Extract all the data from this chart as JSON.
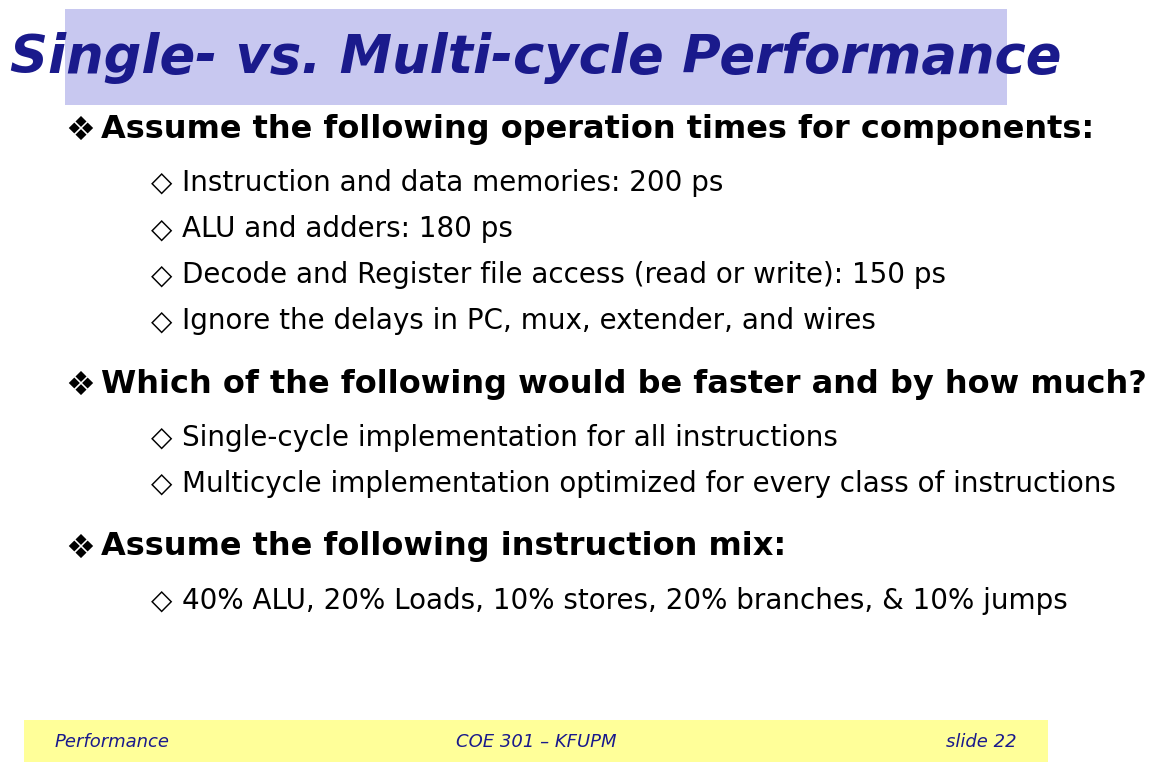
{
  "title": "Single- vs. Multi-cycle Performance",
  "title_bg_color": "#c8c8f0",
  "title_text_color": "#1a1a8c",
  "slide_bg_color": "#ffffff",
  "footer_bg_color": "#ffff99",
  "footer_left": "Performance",
  "footer_center": "COE 301 – KFUPM",
  "footer_right": "slide 22",
  "footer_text_color": "#1a1a8c",
  "body_text_color": "#000000",
  "main_bullets": [
    "Assume the following operation times for components:",
    "Which of the following would be faster and by how much?",
    "Assume the following instruction mix:"
  ],
  "sub_bullets_1": [
    "Instruction and data memories: 200 ps",
    "ALU and adders: 180 ps",
    "Decode and Register file access (read or write): 150 ps",
    "Ignore the delays in PC, mux, extender, and wires"
  ],
  "sub_bullets_2": [
    "Single-cycle implementation for all instructions",
    "Multicycle implementation optimized for every class of instructions"
  ],
  "sub_bullets_3": [
    "40% ALU, 20% Loads, 10% stores, 20% branches, & 10% jumps"
  ],
  "main_bullet_symbol": "❖",
  "sub_bullet_symbol": "◇",
  "title_fontsize": 38,
  "main_fontsize": 23,
  "sub_fontsize": 20,
  "footer_fontsize": 13
}
